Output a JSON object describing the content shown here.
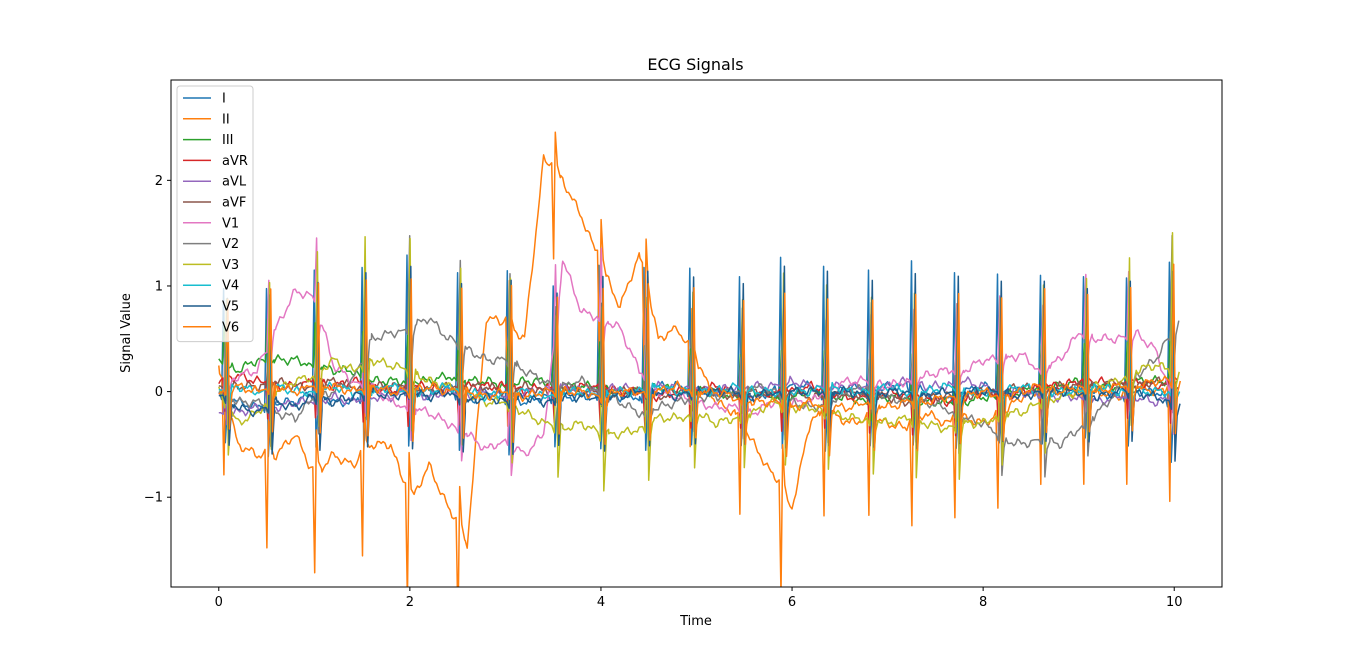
{
  "chart_data": {
    "type": "line",
    "title": "ECG Signals",
    "xlabel": "Time",
    "ylabel": "Signal Value",
    "xlim": [
      -0.5,
      10.5
    ],
    "ylim": [
      -1.85,
      2.95
    ],
    "xticks": [
      0,
      2,
      4,
      6,
      8,
      10
    ],
    "xtick_labels": [
      "0",
      "2",
      "4",
      "6",
      "8",
      "10"
    ],
    "yticks": [
      -1,
      0,
      1,
      2
    ],
    "ytick_labels": [
      "−1",
      "0",
      "1",
      "2"
    ],
    "grid": false,
    "legend_position": "top-left",
    "x": [
      0,
      0.2,
      0.4,
      0.6,
      0.8,
      1.0,
      1.2,
      1.4,
      1.6,
      1.8,
      2.0,
      2.2,
      2.4,
      2.6,
      2.8,
      3.0,
      3.2,
      3.4,
      3.6,
      3.8,
      4.0,
      4.2,
      4.4,
      4.6,
      4.8,
      5.0,
      5.2,
      5.4,
      5.6,
      5.8,
      6.0,
      6.2,
      6.4,
      6.6,
      6.8,
      7.0,
      7.2,
      7.4,
      7.6,
      7.8,
      8.0,
      8.2,
      8.4,
      8.6,
      8.8,
      9.0,
      9.2,
      9.4,
      9.6,
      9.8,
      10.0
    ],
    "series": [
      {
        "name": "I",
        "color": "#1f77b4",
        "values": [
          0.0,
          -0.1,
          -0.15,
          -0.1,
          -0.1,
          0.0,
          -0.1,
          -0.1,
          0.05,
          0.0,
          0.05,
          -0.05,
          0.05,
          -0.1,
          0.0,
          -0.05,
          -0.1,
          -0.05,
          -0.05,
          -0.05,
          0.0,
          -0.05,
          -0.05,
          0.05,
          0.05,
          0.0,
          0.0,
          0.0,
          -0.05,
          0.0,
          0.05,
          0.05,
          -0.05,
          0.05,
          0.0,
          0.05,
          0.05,
          0.0,
          -0.05,
          0.0,
          0.05,
          0.0,
          0.0,
          0.0,
          0.0,
          0.05,
          0.0,
          -0.05,
          0.0,
          0.0,
          -0.1
        ]
      },
      {
        "name": "II",
        "color": "#ff7f0e",
        "values": [
          0.2,
          -0.5,
          -0.6,
          -0.6,
          -0.4,
          -0.8,
          -0.6,
          -0.7,
          -0.5,
          -0.5,
          -1.05,
          -0.7,
          -1.1,
          -1.45,
          0.7,
          0.65,
          0.5,
          2.2,
          2.0,
          1.65,
          1.2,
          0.8,
          1.3,
          0.5,
          0.6,
          0.3,
          -0.1,
          -0.2,
          -0.5,
          -0.8,
          -1.1,
          -0.25,
          -0.2,
          -0.3,
          -0.25,
          -0.3,
          -0.35,
          -0.2,
          -0.3,
          -0.25,
          -0.3,
          -0.2,
          -0.05,
          0.0,
          0.05,
          -0.05,
          0.0,
          -0.05,
          0.05,
          0.0,
          0.0
        ]
      },
      {
        "name": "III",
        "color": "#2ca02c",
        "values": [
          0.3,
          0.2,
          0.3,
          0.3,
          0.3,
          0.25,
          0.2,
          0.2,
          0.1,
          0.1,
          0.1,
          0.1,
          0.15,
          0.1,
          0.1,
          0.05,
          0.1,
          0.1,
          0.05,
          0.05,
          0.05,
          0.0,
          0.0,
          0.05,
          0.0,
          0.0,
          0.0,
          -0.05,
          0.0,
          -0.05,
          -0.05,
          0.0,
          -0.05,
          -0.05,
          -0.1,
          -0.05,
          -0.05,
          -0.1,
          -0.1,
          -0.1,
          -0.05,
          -0.05,
          0.0,
          0.05,
          0.05,
          0.1,
          0.05,
          0.05,
          0.1,
          0.1,
          0.1
        ]
      },
      {
        "name": "aVR",
        "color": "#d62728",
        "values": [
          0.1,
          0.15,
          0.1,
          0.05,
          0.05,
          0.1,
          0.05,
          0.1,
          0.05,
          0.0,
          0.05,
          0.05,
          0.0,
          0.05,
          0.05,
          0.05,
          0.0,
          0.05,
          0.0,
          0.05,
          0.05,
          0.0,
          0.0,
          -0.05,
          0.0,
          0.0,
          0.05,
          0.0,
          -0.05,
          0.0,
          0.0,
          0.05,
          0.0,
          -0.05,
          -0.05,
          0.0,
          -0.05,
          -0.05,
          -0.1,
          -0.05,
          0.0,
          -0.05,
          0.0,
          0.05,
          0.05,
          0.1,
          0.1,
          0.05,
          0.1,
          0.05,
          0.1
        ]
      },
      {
        "name": "aVL",
        "color": "#9467bd",
        "values": [
          -0.2,
          -0.2,
          -0.15,
          -0.15,
          -0.1,
          -0.1,
          -0.05,
          -0.1,
          -0.05,
          -0.05,
          0.0,
          -0.05,
          0.0,
          -0.05,
          0.0,
          -0.05,
          0.0,
          0.0,
          0.05,
          0.0,
          0.0,
          0.05,
          0.0,
          0.05,
          0.05,
          0.05,
          0.0,
          0.05,
          0.05,
          0.05,
          0.1,
          0.05,
          0.05,
          0.05,
          0.05,
          0.05,
          0.1,
          0.05,
          0.05,
          0.1,
          0.05,
          0.0,
          0.0,
          -0.05,
          -0.05,
          -0.05,
          -0.1,
          -0.05,
          -0.05,
          -0.1,
          -0.05
        ]
      },
      {
        "name": "aVF",
        "color": "#8c564b",
        "values": [
          0.05,
          0.05,
          0.05,
          0.1,
          0.05,
          0.05,
          0.1,
          0.05,
          0.05,
          0.05,
          0.05,
          0.0,
          0.05,
          0.05,
          0.05,
          0.0,
          0.05,
          0.0,
          0.05,
          0.0,
          0.0,
          0.0,
          0.0,
          -0.05,
          0.0,
          0.0,
          0.0,
          -0.05,
          0.0,
          -0.05,
          0.0,
          -0.05,
          -0.05,
          0.0,
          -0.05,
          -0.05,
          -0.1,
          -0.05,
          -0.05,
          -0.05,
          0.0,
          0.0,
          0.05,
          0.0,
          0.05,
          0.05,
          0.05,
          0.1,
          0.05,
          0.1,
          0.05
        ]
      },
      {
        "name": "V1",
        "color": "#e377c2",
        "values": [
          0.0,
          0.15,
          0.2,
          0.6,
          0.95,
          0.9,
          0.25,
          0.1,
          0.05,
          -0.1,
          -0.15,
          -0.2,
          -0.3,
          -0.4,
          -0.55,
          -0.45,
          -0.6,
          -0.4,
          1.25,
          0.75,
          0.7,
          0.6,
          0.2,
          0.0,
          -0.05,
          -0.1,
          -0.15,
          -0.15,
          -0.2,
          -0.1,
          -0.1,
          -0.1,
          0.05,
          0.1,
          0.1,
          0.05,
          0.1,
          0.15,
          0.2,
          0.2,
          0.3,
          0.3,
          0.35,
          0.2,
          0.3,
          0.55,
          0.5,
          0.5,
          0.55,
          0.4,
          -0.1
        ]
      },
      {
        "name": "V2",
        "color": "#7f7f7f",
        "values": [
          0.0,
          -0.1,
          -0.1,
          -0.2,
          -0.25,
          -0.05,
          0.0,
          0.1,
          0.5,
          0.55,
          0.6,
          0.7,
          0.5,
          0.4,
          0.3,
          0.3,
          0.2,
          0.1,
          0.05,
          0.1,
          0.0,
          -0.1,
          -0.2,
          -0.15,
          -0.1,
          -0.05,
          -0.05,
          0.0,
          0.05,
          0.0,
          -0.1,
          -0.15,
          -0.1,
          0.0,
          0.05,
          -0.05,
          -0.1,
          -0.1,
          -0.15,
          -0.25,
          -0.3,
          -0.45,
          -0.5,
          -0.45,
          -0.5,
          -0.35,
          -0.2,
          0.0,
          0.15,
          0.3,
          0.6
        ]
      },
      {
        "name": "V3",
        "color": "#bcbd22",
        "values": [
          0.0,
          -0.3,
          -0.2,
          0.0,
          0.1,
          0.15,
          0.3,
          0.2,
          0.3,
          0.25,
          0.2,
          0.1,
          0.05,
          0.0,
          -0.1,
          -0.1,
          -0.2,
          -0.3,
          -0.35,
          -0.3,
          -0.4,
          -0.4,
          -0.35,
          -0.25,
          -0.25,
          -0.2,
          -0.3,
          -0.25,
          -0.2,
          -0.1,
          -0.15,
          -0.15,
          -0.2,
          -0.25,
          -0.25,
          -0.3,
          -0.25,
          -0.3,
          -0.35,
          -0.3,
          -0.3,
          -0.2,
          -0.2,
          -0.1,
          -0.05,
          0.0,
          0.05,
          0.1,
          0.2,
          0.25,
          0.2
        ]
      },
      {
        "name": "V4",
        "color": "#17becf",
        "values": [
          0.0,
          0.05,
          0.0,
          0.05,
          0.0,
          0.0,
          0.05,
          0.0,
          0.0,
          0.05,
          0.0,
          0.0,
          0.05,
          0.0,
          -0.05,
          0.0,
          0.0,
          -0.05,
          0.0,
          0.0,
          -0.05,
          0.0,
          0.0,
          0.05,
          0.0,
          0.0,
          0.0,
          0.05,
          0.0,
          0.0,
          0.0,
          0.0,
          0.05,
          0.0,
          0.0,
          0.05,
          0.0,
          0.0,
          0.05,
          0.0,
          0.0,
          0.0,
          0.05,
          0.0,
          0.0,
          0.0,
          0.05,
          0.0,
          0.0,
          0.0,
          0.0
        ]
      },
      {
        "name": "V5",
        "color": "#1f5c8b",
        "values": [
          0.0,
          -0.15,
          -0.2,
          -0.1,
          -0.15,
          -0.05,
          -0.1,
          -0.05,
          0.0,
          -0.05,
          0.0,
          -0.05,
          0.0,
          -0.1,
          -0.05,
          -0.1,
          -0.05,
          -0.1,
          -0.05,
          -0.05,
          -0.05,
          -0.05,
          0.0,
          0.0,
          -0.05,
          0.0,
          0.0,
          0.0,
          -0.05,
          0.0,
          0.0,
          0.0,
          0.0,
          0.0,
          -0.05,
          0.0,
          0.0,
          -0.05,
          0.0,
          0.0,
          0.0,
          0.0,
          -0.05,
          0.0,
          0.0,
          0.0,
          -0.05,
          0.0,
          0.0,
          -0.05,
          -0.1
        ]
      },
      {
        "name": "V6",
        "color": "#ff7f0e",
        "values": [
          0.0,
          0.05,
          0.0,
          0.05,
          0.0,
          0.05,
          0.05,
          0.0,
          0.05,
          0.0,
          0.0,
          0.05,
          0.0,
          0.0,
          -0.05,
          0.0,
          -0.05,
          0.0,
          0.0,
          0.0,
          -0.05,
          0.0,
          0.0,
          0.0,
          0.05,
          0.0,
          0.0,
          -0.05,
          -0.1,
          -0.1,
          -0.15,
          -0.1,
          -0.15,
          -0.15,
          -0.1,
          -0.15,
          -0.1,
          -0.1,
          -0.05,
          -0.05,
          0.0,
          -0.05,
          0.0,
          0.05,
          0.0,
          0.05,
          0.0,
          0.05,
          0.05,
          0.1,
          0.1
        ]
      }
    ],
    "peaks": {
      "x": [
        0.05,
        0.5,
        1.0,
        1.5,
        1.97,
        2.5,
        3.02,
        3.5,
        3.98,
        4.45,
        4.93,
        5.45,
        5.88,
        6.33,
        6.8,
        7.25,
        7.7,
        8.15,
        8.6,
        9.05,
        9.5,
        9.95
      ],
      "amplitude": [
        1.0,
        1.1,
        1.15,
        1.2,
        1.25,
        1.15,
        1.2,
        1.05,
        1.2,
        1.2,
        1.15,
        1.1,
        1.25,
        1.2,
        1.15,
        1.2,
        1.15,
        1.1,
        1.1,
        1.05,
        1.1,
        1.3
      ]
    }
  }
}
